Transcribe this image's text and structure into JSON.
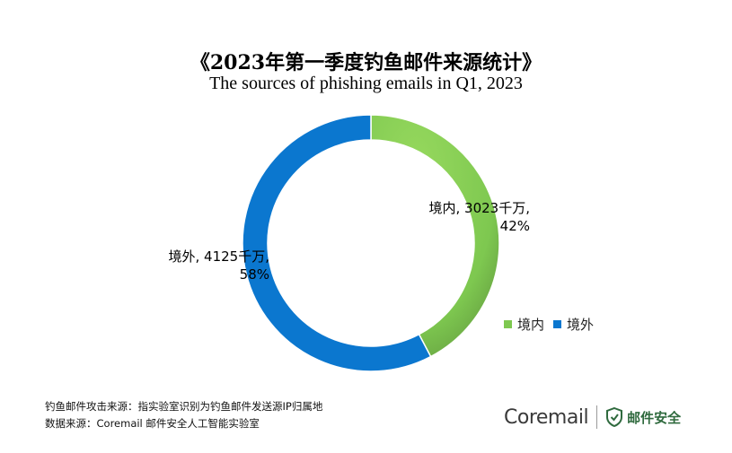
{
  "chart_data": {
    "type": "pie",
    "title": "《2023年第一季度钓鱼邮件来源统计》",
    "subtitle": "The sources of phishing emails in Q1, 2023",
    "slices": [
      {
        "name": "境内",
        "value": 3023,
        "unit": "千万",
        "percent": 42,
        "label_line1": "境内, 3023千万,",
        "label_line2": "42%",
        "color": "#7ec850"
      },
      {
        "name": "境外",
        "value": 4125,
        "unit": "千万",
        "percent": 58,
        "label_line1": "境外, 4125千万,",
        "label_line2": "58%",
        "color": "#0b77cf"
      }
    ],
    "legend": [
      "境内",
      "境外"
    ],
    "legend_position": "right-bottom",
    "donut": true
  },
  "footnotes": {
    "line1": "钓鱼邮件攻击来源：指实验室识别为钓鱼邮件发送源IP归属地",
    "line2": "数据来源：Coremail 邮件安全人工智能实验室"
  },
  "logo": {
    "brand": "Coremail",
    "product": "邮件安全",
    "accent": "#2f6a3e"
  }
}
